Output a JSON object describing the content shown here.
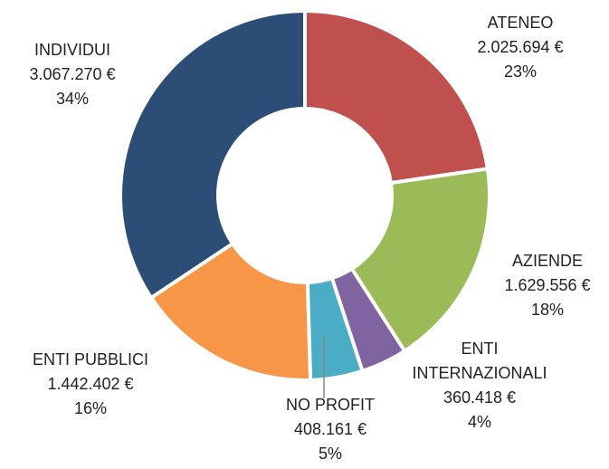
{
  "chart_data": {
    "type": "donut",
    "categories": [
      "ATENEO",
      "AZIENDE",
      "ENTI INTERNAZIONALI",
      "NO PROFIT",
      "ENTI PUBBLICI",
      "INDIVIDUI"
    ],
    "values": [
      2025694,
      1629556,
      360418,
      408161,
      1442402,
      3067270
    ],
    "value_labels": [
      "2.025.694 €",
      "1.629.556 €",
      "360.418 €",
      "408.161 €",
      "1.442.402 €",
      "3.067.270 €"
    ],
    "percent_labels": [
      "23%",
      "18%",
      "4%",
      "5%",
      "16%",
      "34%"
    ],
    "colors": [
      "#c0504d",
      "#9bbb59",
      "#8064a2",
      "#4bacc6",
      "#f79646",
      "#2c4d75"
    ]
  }
}
